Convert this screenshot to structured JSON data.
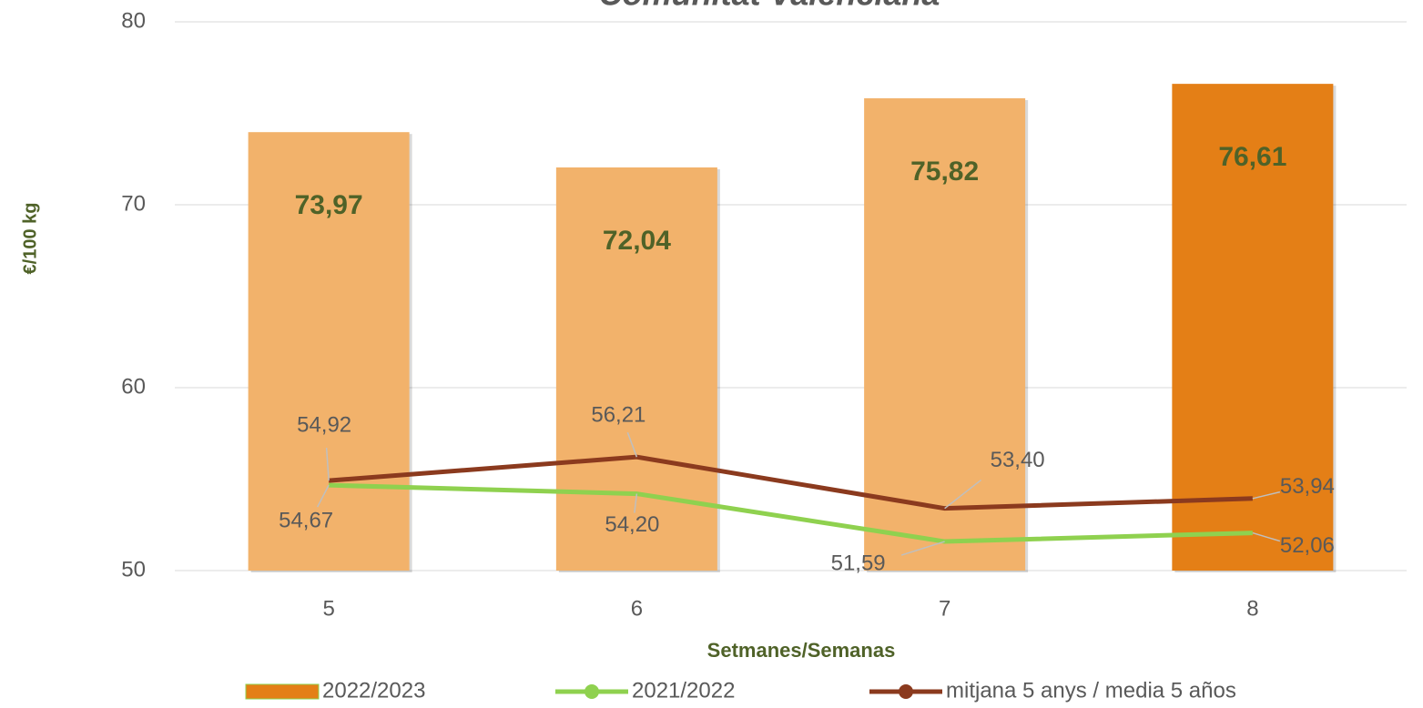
{
  "chart_data": {
    "type": "bar",
    "title": "Comunitat Valenciana",
    "x_label": "Setmanes/Semanas",
    "y_label": "€/100 kg",
    "categories": [
      "5",
      "6",
      "7",
      "8"
    ],
    "ylim": [
      50,
      80
    ],
    "yticks": [
      50,
      60,
      70,
      80
    ],
    "grid": true,
    "series": [
      {
        "name": "2022/2023",
        "type": "bar",
        "colors": [
          "#f2b26b",
          "#f2b26b",
          "#f2b26b",
          "#e47f16"
        ],
        "color": "#e47f16",
        "values": [
          73.97,
          72.04,
          75.82,
          76.61
        ],
        "value_labels": [
          "73,97",
          "72,04",
          "75,82",
          "76,61"
        ]
      },
      {
        "name": "2021/2022",
        "type": "line",
        "color": "#8fd14f",
        "values": [
          54.67,
          54.2,
          51.59,
          52.06
        ],
        "value_labels": [
          "54,67",
          "54,20",
          "51,59",
          "52,06"
        ]
      },
      {
        "name": "mitjana 5 anys / media 5 años",
        "type": "line",
        "color": "#8b3a1e",
        "values": [
          54.92,
          56.21,
          53.4,
          53.94
        ],
        "value_labels": [
          "54,92",
          "56,21",
          "53,40",
          "53,94"
        ]
      }
    ],
    "legend": "bottom"
  }
}
